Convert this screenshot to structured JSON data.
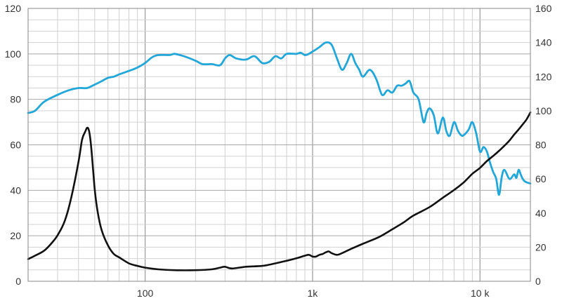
{
  "chart_data": {
    "type": "line",
    "x_scale": "log",
    "xlim": [
      20,
      20000
    ],
    "x_ticks": [
      {
        "value": 100,
        "label": "100"
      },
      {
        "value": 1000,
        "label": "1k"
      },
      {
        "value": 10000,
        "label": "10 k"
      }
    ],
    "y_left": {
      "lim": [
        0,
        120
      ],
      "step": 20,
      "labels": [
        "0",
        "20",
        "40",
        "60",
        "80",
        "100",
        "120"
      ]
    },
    "y_right": {
      "lim": [
        0,
        160
      ],
      "step": 20,
      "labels": [
        "0",
        "20",
        "40",
        "60",
        "80",
        "100",
        "120",
        "140",
        "160"
      ]
    },
    "grid": true,
    "series": [
      {
        "axis": "left",
        "color": "#22a7d8",
        "x": [
          20,
          22,
          25,
          30,
          35,
          40,
          45,
          50,
          55,
          60,
          65,
          70,
          80,
          90,
          100,
          110,
          120,
          140,
          150,
          170,
          200,
          220,
          250,
          280,
          300,
          320,
          350,
          400,
          450,
          500,
          550,
          600,
          650,
          700,
          800,
          850,
          900,
          950,
          1000,
          1100,
          1200,
          1300,
          1400,
          1500,
          1600,
          1700,
          1800,
          1900,
          2000,
          2200,
          2400,
          2600,
          2800,
          3000,
          3200,
          3400,
          3600,
          3800,
          4000,
          4300,
          4600,
          4800,
          5000,
          5300,
          5600,
          6000,
          6300,
          6600,
          7000,
          7400,
          7800,
          8200,
          8600,
          9000,
          9500,
          10000,
          10500,
          11000,
          11500,
          12000,
          12500,
          13000,
          13500,
          14000,
          15000,
          16000,
          16500,
          17000,
          17500,
          18000,
          18500,
          19000,
          20000
        ],
        "y": [
          74,
          75,
          79,
          82,
          84,
          85,
          85,
          86.5,
          88,
          89.5,
          90,
          91,
          92.5,
          94,
          96,
          98.5,
          99.5,
          99.5,
          100,
          99,
          97,
          95.5,
          95.5,
          95,
          98,
          99.5,
          98,
          97.5,
          99,
          96,
          96.5,
          99,
          98,
          100,
          100,
          100.5,
          99.5,
          100,
          101,
          103,
          105,
          104,
          98,
          93,
          96,
          100,
          96,
          93,
          90,
          93,
          89,
          82,
          84,
          83,
          86,
          86,
          87,
          88,
          83,
          80,
          70,
          74,
          76,
          73,
          65,
          72,
          66,
          64,
          70,
          66,
          64,
          65,
          67,
          70,
          65,
          57,
          59,
          57,
          52,
          48,
          45,
          38,
          46,
          49,
          45,
          47,
          45.5,
          49,
          47,
          45,
          44,
          43.5,
          43
        ]
      },
      {
        "axis": "right",
        "color": "#111111",
        "x": [
          20,
          22,
          25,
          28,
          30,
          33,
          36,
          40,
          42,
          44,
          45,
          46,
          47,
          48,
          50,
          52,
          55,
          60,
          65,
          70,
          80,
          90,
          100,
          120,
          150,
          200,
          250,
          280,
          300,
          330,
          400,
          500,
          600,
          700,
          800,
          900,
          950,
          1000,
          1050,
          1100,
          1150,
          1200,
          1250,
          1300,
          1400,
          1500,
          1700,
          2000,
          2500,
          3000,
          3500,
          4000,
          5000,
          6000,
          7000,
          8000,
          9000,
          10000,
          11000,
          12000,
          13000,
          14000,
          15000,
          16000,
          17000,
          18000,
          19000,
          20000
        ],
        "y": [
          13,
          15,
          18,
          23,
          27,
          35,
          48,
          70,
          83,
          88,
          90,
          89,
          84,
          75,
          54,
          41,
          30,
          21,
          16,
          14,
          10.5,
          9,
          8,
          7,
          6.5,
          6.5,
          7,
          8,
          8.5,
          7.5,
          8.5,
          9,
          10.5,
          12,
          13.5,
          15,
          15.5,
          14.5,
          14.5,
          15.5,
          16,
          17,
          17.5,
          16.5,
          15.5,
          16.5,
          19,
          22,
          26,
          30.5,
          34.5,
          38.5,
          43.5,
          49,
          53.5,
          58,
          63,
          66.5,
          70.5,
          73.5,
          76.5,
          79.5,
          82.5,
          86,
          89,
          92,
          95,
          99
        ]
      }
    ]
  }
}
